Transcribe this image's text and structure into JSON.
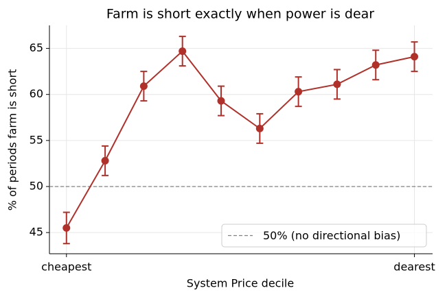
{
  "chart_data": {
    "type": "line",
    "title": "Farm is short exactly when power is dear",
    "x_label": "System Price decile",
    "y_label": "% of periods farm is short",
    "x": [
      1,
      2,
      3,
      4,
      5,
      6,
      7,
      8,
      9,
      10
    ],
    "values": [
      45.5,
      52.8,
      60.9,
      64.7,
      59.3,
      56.3,
      60.3,
      61.1,
      63.2,
      64.1
    ],
    "errors": [
      1.7,
      1.6,
      1.6,
      1.6,
      1.6,
      1.6,
      1.6,
      1.6,
      1.6,
      1.6
    ],
    "color": "#b0302a",
    "xlim": [
      0.56,
      10.47
    ],
    "xticks": [
      {
        "value": 1,
        "label": "cheapest"
      },
      {
        "value": 10,
        "label": "dearest"
      }
    ],
    "ylim": [
      42.7,
      67.5
    ],
    "yticks": [
      45,
      50,
      55,
      60,
      65
    ],
    "grid": true,
    "reference_line": {
      "value": 50,
      "label": "50% (no directional bias)",
      "color": "#808080"
    },
    "legend_position": "lower right"
  }
}
